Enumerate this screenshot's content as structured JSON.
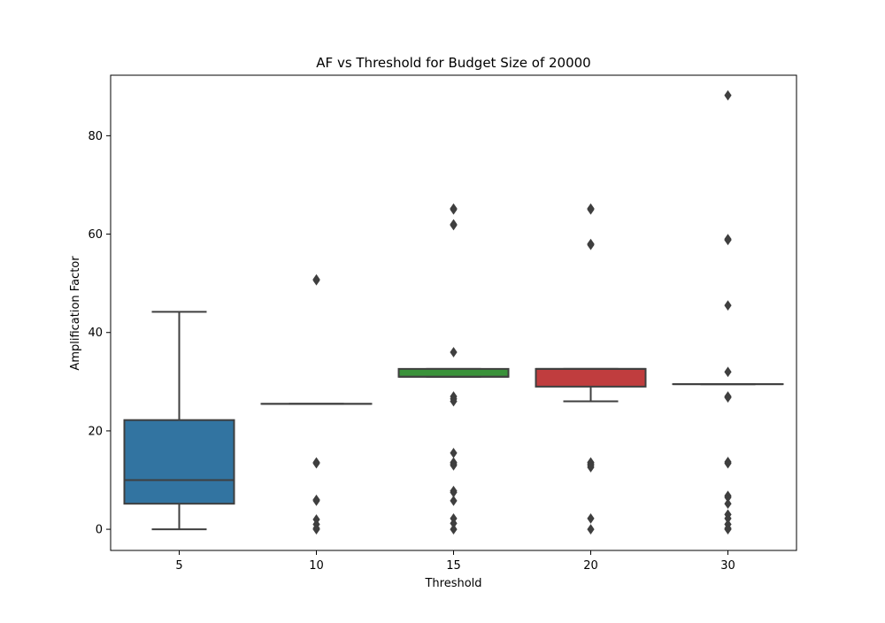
{
  "chart_data": {
    "type": "box",
    "title": "AF vs Threshold for Budget Size of 20000",
    "xlabel": "Threshold",
    "ylabel": "Amplification Factor",
    "ylim": [
      -4.3,
      92.3
    ],
    "yticks": [
      0,
      20,
      40,
      60,
      80
    ],
    "categories": [
      "5",
      "10",
      "15",
      "20",
      "30"
    ],
    "colors": [
      "#3274a1",
      "#e1812c",
      "#3a923a",
      "#c03d3e",
      "#9372b2"
    ],
    "box_edge_color": "#3f3f3f",
    "boxes": [
      {
        "category": "5",
        "whisker_low": 0,
        "q1": 5.2,
        "median": 10.0,
        "q3": 22.2,
        "whisker_high": 44.2,
        "outliers": []
      },
      {
        "category": "10",
        "whisker_low": 25.5,
        "q1": 25.5,
        "median": 25.5,
        "q3": 25.5,
        "whisker_high": 25.5,
        "outliers": [
          50.8,
          50.6,
          13.6,
          13.4,
          6.0,
          5.8,
          2.0,
          1.0,
          0.2,
          0
        ]
      },
      {
        "category": "15",
        "whisker_low": 31.0,
        "q1": 31.0,
        "median": 31.0,
        "q3": 32.6,
        "whisker_high": 32.6,
        "outliers": [
          65.2,
          65.0,
          62.0,
          61.8,
          36.0,
          27.0,
          26.5,
          26.0,
          15.5,
          13.6,
          13.3,
          13.0,
          7.8,
          7.5,
          5.8,
          2.2,
          1.2,
          0
        ]
      },
      {
        "category": "20",
        "whisker_low": 26.0,
        "q1": 29.0,
        "median": 32.6,
        "q3": 32.6,
        "whisker_high": 32.6,
        "outliers": [
          65.2,
          65.0,
          58.0,
          57.8,
          13.6,
          13.3,
          13.0,
          12.6,
          2.2,
          0
        ]
      },
      {
        "category": "30",
        "whisker_low": 29.5,
        "q1": 29.5,
        "median": 29.5,
        "q3": 29.5,
        "whisker_high": 29.5,
        "outliers": [
          88.2,
          59.0,
          58.8,
          45.5,
          32.0,
          27.0,
          26.8,
          13.7,
          13.4,
          6.8,
          6.5,
          5.2,
          3.0,
          2.2,
          1.0,
          0.2,
          0
        ]
      }
    ],
    "grid": false,
    "legend": "none"
  }
}
